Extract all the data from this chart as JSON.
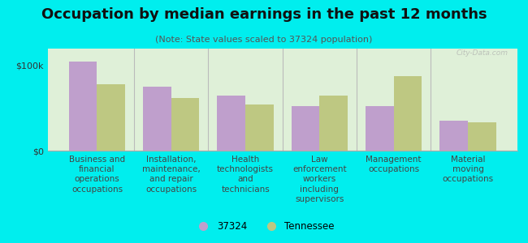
{
  "title": "Occupation by median earnings in the past 12 months",
  "subtitle": "(Note: State values scaled to 37324 population)",
  "categories": [
    "Business and\nfinancial\noperations\noccupations",
    "Installation,\nmaintenance,\nand repair\noccupations",
    "Health\ntechnologists\nand\ntechnicians",
    "Law\nenforcement\nworkers\nincluding\nsupervisors",
    "Management\noccupations",
    "Material\nmoving\noccupations"
  ],
  "values_37324": [
    105000,
    75000,
    65000,
    52000,
    52000,
    35000
  ],
  "values_tennessee": [
    78000,
    62000,
    54000,
    65000,
    88000,
    33000
  ],
  "color_37324": "#bf9fcc",
  "color_tennessee": "#bec882",
  "bar_width": 0.38,
  "ylim": [
    0,
    120000
  ],
  "yticks": [
    0,
    100000
  ],
  "ytick_labels": [
    "$0",
    "$100k"
  ],
  "background_color": "#00eeee",
  "plot_bg_top": "#dff0d8",
  "plot_bg_bottom": "#f0faf0",
  "legend_37324": "37324",
  "legend_tennessee": "Tennessee",
  "watermark": "City-Data.com",
  "title_fontsize": 13,
  "subtitle_fontsize": 8,
  "tick_label_fontsize": 7.5,
  "ytick_fontsize": 8
}
